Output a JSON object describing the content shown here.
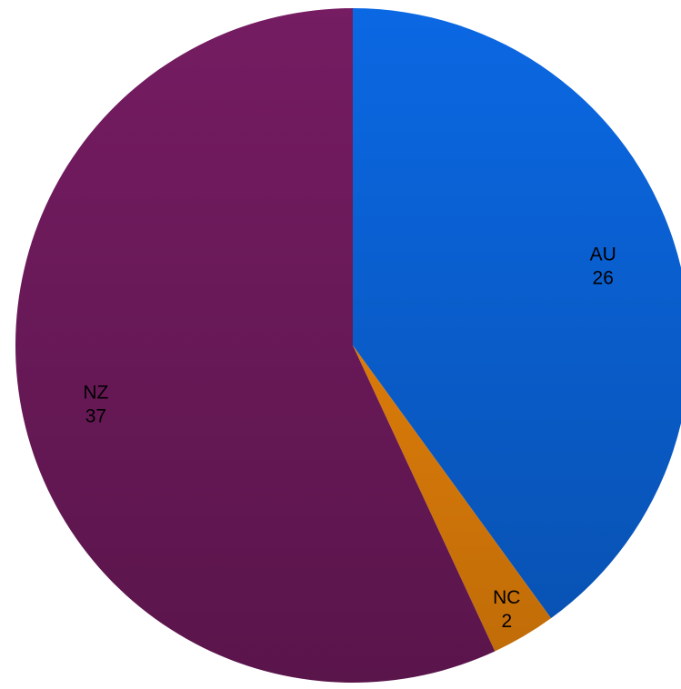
{
  "chart_data": {
    "type": "pie",
    "title": "",
    "slices": [
      {
        "category": "AU",
        "value": 26,
        "color": "#0a62d6"
      },
      {
        "category": "NC",
        "value": 2,
        "color": "#e8820a"
      },
      {
        "category": "NZ",
        "value": 37,
        "color": "#6e1a5c"
      }
    ],
    "start_angle": "12 o'clock",
    "direction": "clockwise",
    "legend": "none",
    "data_labels": "category and value inside slices"
  }
}
